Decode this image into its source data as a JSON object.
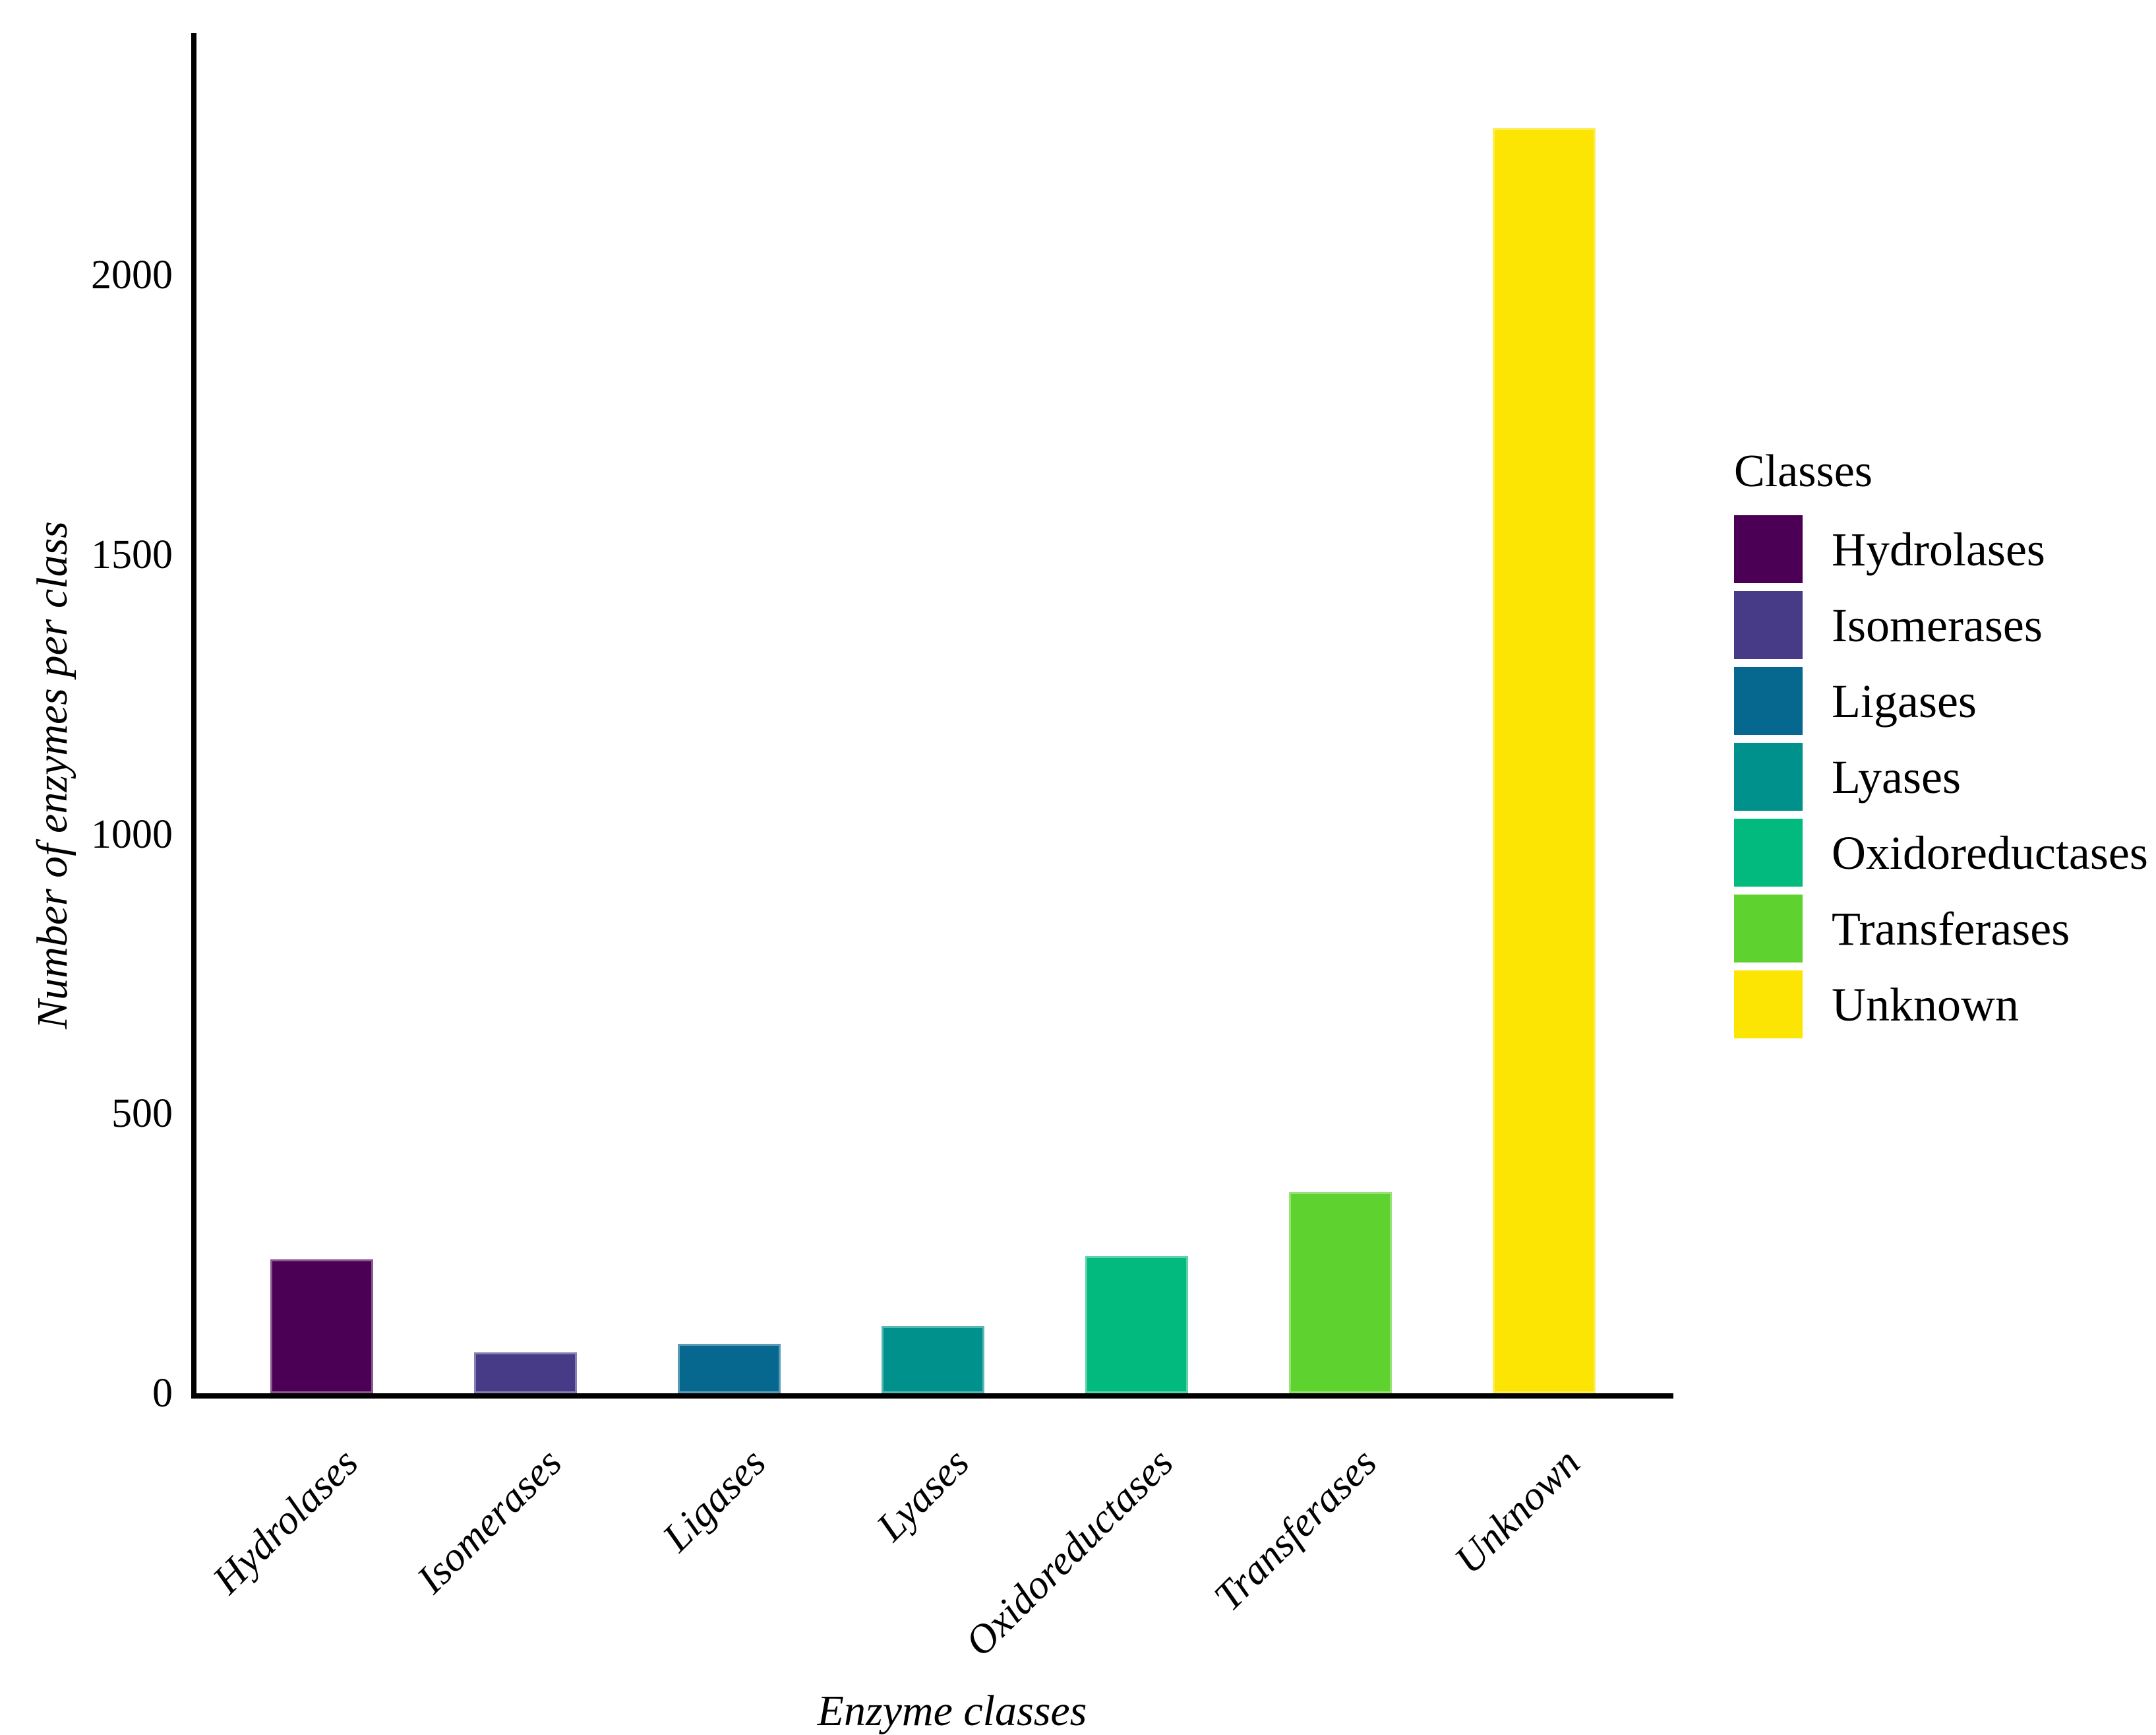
{
  "chart_data": {
    "type": "bar",
    "title": "",
    "xlabel": "Enzyme classes",
    "ylabel": "Number of enzymes per class",
    "categories": [
      "Hydrolases",
      "Isomerases",
      "Ligases",
      "Lyases",
      "Oxidoreductases",
      "Transferases",
      "Unknown"
    ],
    "values": [
      240,
      73,
      88,
      120,
      245,
      360,
      2263
    ],
    "colors": [
      "#4B0055",
      "#473A87",
      "#07688F",
      "#00918C",
      "#02BA7E",
      "#5ED32F",
      "#FCE403"
    ],
    "yticks": [
      0,
      500,
      1000,
      1500,
      2000
    ],
    "ylim": [
      0,
      2435
    ],
    "grid": false,
    "legend_position": "right",
    "axis_color": "#000000",
    "background_color": "#ffffff"
  },
  "legend": {
    "title": "Classes",
    "entries": [
      "Hydrolases",
      "Isomerases",
      "Ligases",
      "Lyases",
      "Oxidoreductases",
      "Transferases",
      "Unknown"
    ]
  }
}
